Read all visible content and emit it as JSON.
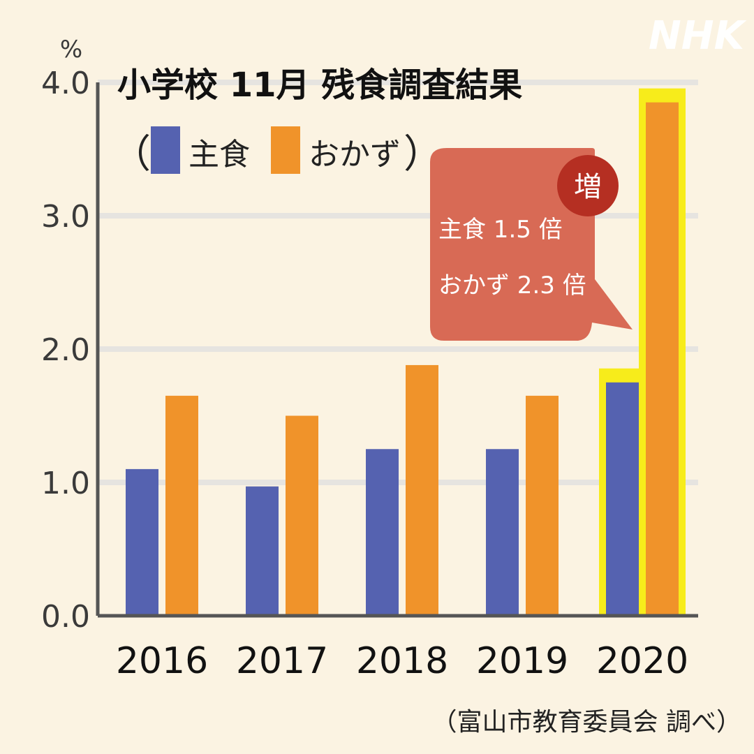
{
  "logo": "NHK",
  "title": "小学校 11月 残食調査結果",
  "unit": "%",
  "source": "（富山市教育委員会 調べ）",
  "legend": {
    "open_paren": "（",
    "close_paren": "）",
    "items": [
      {
        "label": "主食",
        "color": "#5562b0"
      },
      {
        "label": "おかず",
        "color": "#f0932a"
      }
    ]
  },
  "callout": {
    "badge": "増",
    "line1": "主食 1.5 倍",
    "line2": "おかず 2.3 倍",
    "color": "#d86a55",
    "badge_color": "#b52f22"
  },
  "highlight_color": "#f7ec1b",
  "chart_data": {
    "type": "bar",
    "categories": [
      "2016",
      "2017",
      "2018",
      "2019",
      "2020"
    ],
    "series": [
      {
        "name": "主食",
        "values": [
          1.1,
          0.97,
          1.25,
          1.25,
          1.75
        ],
        "color": "#5562b0"
      },
      {
        "name": "おかず",
        "values": [
          1.65,
          1.5,
          1.88,
          1.65,
          3.85
        ],
        "color": "#f0932a"
      }
    ],
    "ylabel": "%",
    "ylim": [
      0,
      4.0
    ],
    "yticks": [
      "0.0",
      "1.0",
      "2.0",
      "3.0",
      "4.0"
    ],
    "grid": true,
    "highlighted_category": "2020"
  }
}
